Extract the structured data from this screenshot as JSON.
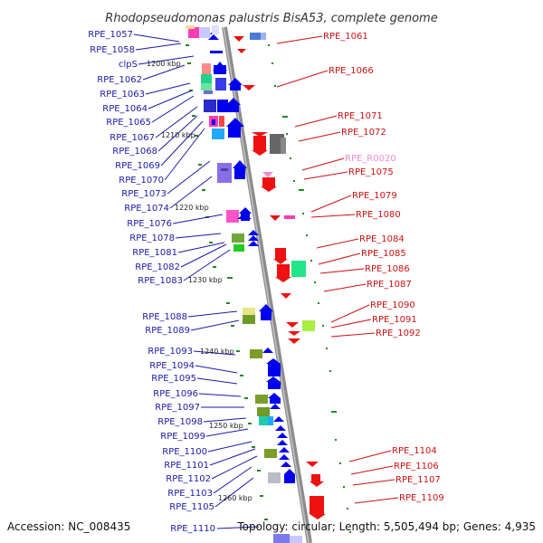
{
  "title": "Rhodopseudomonas palustris BisA53, complete genome",
  "footer": {
    "accession": "Accession: NC_008435",
    "topology": "Topology: circular; Length: 5,505,494 bp; Genes: 4,935"
  },
  "colors": {
    "left_label": "#1a1aa6",
    "right_label": "#cc1111",
    "rna_label": "#f08ad0",
    "backbone": "#8c8c8c",
    "forward_gene": "#0000ee",
    "reverse_gene": "#ee1111",
    "tick": "#228822"
  },
  "kbp_ticks": [
    "1200 kbp",
    "1210 kbp",
    "1220 kbp",
    "1230 kbp",
    "1240 kbp",
    "1250 kbp",
    "1260 kbp"
  ],
  "left_labels": [
    "RPE_1057",
    "RPE_1058",
    "clpS",
    "RPE_1062",
    "RPE_1063",
    "RPE_1064",
    "RPE_1065",
    "RPE_1067",
    "RPE_1068",
    "RPE_1069",
    "RPE_1070",
    "RPE_1073",
    "RPE_1074",
    "RPE_1076",
    "RPE_1078",
    "RPE_1081",
    "RPE_1082",
    "RPE_1083",
    "RPE_1088",
    "RPE_1089",
    "RPE_1093",
    "RPE_1094",
    "RPE_1095",
    "RPE_1096",
    "RPE_1097",
    "RPE_1098",
    "RPE_1099",
    "RPE_1100",
    "RPE_1101",
    "RPE_1102",
    "RPE_1103",
    "RPE_1105",
    "RPE_1110"
  ],
  "right_labels": [
    "RPE_1061",
    "RPE_1066",
    "RPE_1071",
    "RPE_1072",
    "RPE_R0020",
    "RPE_1075",
    "RPE_1079",
    "RPE_1080",
    "RPE_1084",
    "RPE_1085",
    "RPE_1086",
    "RPE_1087",
    "RPE_1090",
    "RPE_1091",
    "RPE_1092",
    "RPE_1104",
    "RPE_1106",
    "RPE_1107",
    "RPE_1109"
  ]
}
